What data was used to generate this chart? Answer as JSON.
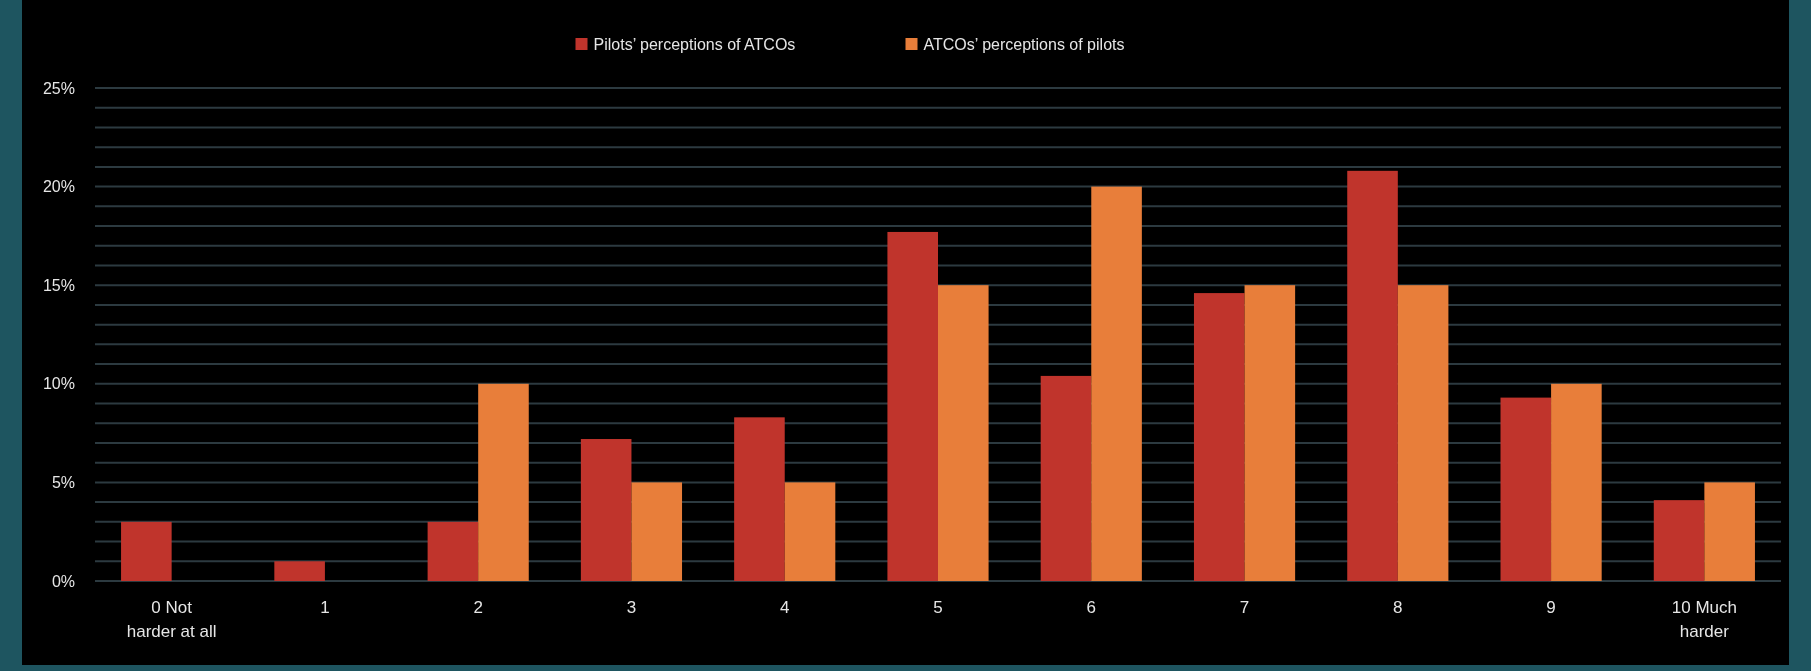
{
  "chart_data": {
    "type": "bar",
    "categories": [
      "0 Not\nharder at all",
      "1",
      "2",
      "3",
      "4",
      "5",
      "6",
      "7",
      "8",
      "9",
      "10 Much\nharder"
    ],
    "series": [
      {
        "name": "Pilots’ perceptions of ATCOs",
        "color": "#c0342c",
        "values": [
          3.0,
          1.0,
          3.0,
          7.2,
          8.3,
          17.7,
          10.4,
          14.6,
          20.8,
          9.3,
          4.1
        ]
      },
      {
        "name": "ATCOs’ perceptions of pilots",
        "color": "#e87e3a",
        "values": [
          0,
          0,
          10,
          5,
          5,
          15,
          20,
          15,
          15,
          10,
          5
        ]
      }
    ],
    "ylim": [
      0,
      25
    ],
    "yticks": [
      {
        "value": 0,
        "label": "0%"
      },
      {
        "value": 1,
        "label": null
      },
      {
        "value": 2,
        "label": null
      },
      {
        "value": 3,
        "label": null
      },
      {
        "value": 4,
        "label": null
      },
      {
        "value": 5,
        "label": "5%"
      },
      {
        "value": 6,
        "label": null
      },
      {
        "value": 7,
        "label": null
      },
      {
        "value": 8,
        "label": null
      },
      {
        "value": 9,
        "label": null
      },
      {
        "value": 10,
        "label": "10%"
      },
      {
        "value": 11,
        "label": null
      },
      {
        "value": 12,
        "label": null
      },
      {
        "value": 13,
        "label": null
      },
      {
        "value": 14,
        "label": null
      },
      {
        "value": 15,
        "label": "15%"
      },
      {
        "value": 16,
        "label": null
      },
      {
        "value": 17,
        "label": null
      },
      {
        "value": 18,
        "label": null
      },
      {
        "value": 19,
        "label": null
      },
      {
        "value": 20,
        "label": "20%"
      },
      {
        "value": 21,
        "label": null
      },
      {
        "value": 22,
        "label": null
      },
      {
        "value": 23,
        "label": null
      },
      {
        "value": 24,
        "label": null
      },
      {
        "value": 25,
        "label": "25%"
      }
    ],
    "grid": "y",
    "legend": "top"
  }
}
